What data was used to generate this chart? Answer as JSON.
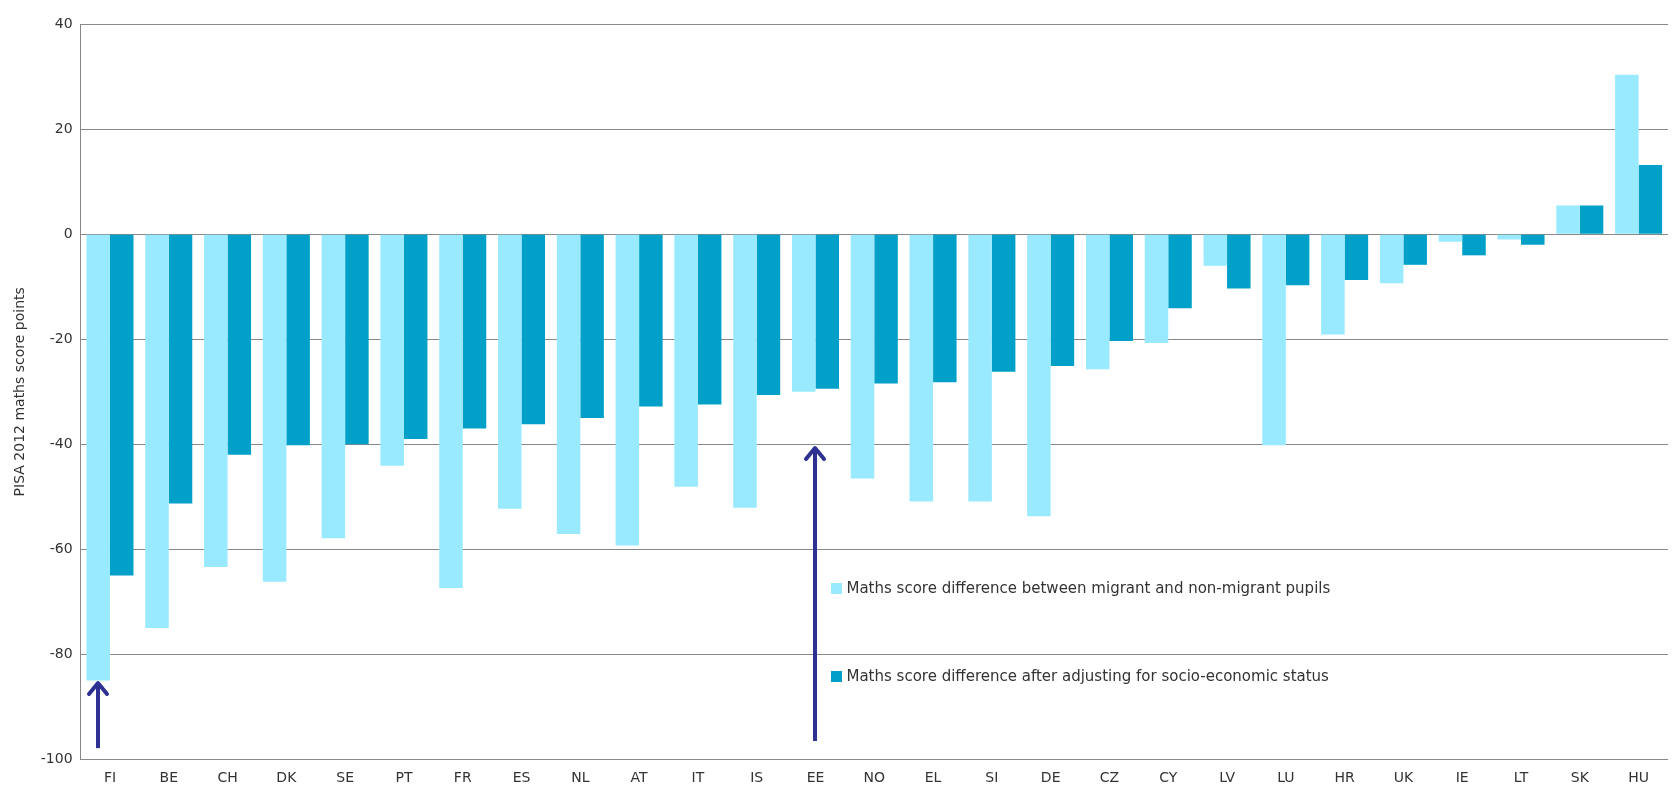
{
  "chart_data": {
    "type": "bar",
    "ylabel": "PISA 2012 maths score points",
    "categories": [
      "FI",
      "BE",
      "CH",
      "DK",
      "SE",
      "PT",
      "FR",
      "ES",
      "NL",
      "AT",
      "IT",
      "IS",
      "EE",
      "NO",
      "EL",
      "SI",
      "DE",
      "CZ",
      "CY",
      "LV",
      "LU",
      "HR",
      "UK",
      "IE",
      "LT",
      "SK",
      "HU"
    ],
    "series": [
      {
        "name": "Maths score difference between migrant and non-migrant pupils",
        "color": "#99eaff",
        "values": [
          -85,
          -75,
          -63.4,
          -66.2,
          -57.9,
          -44.1,
          -67.4,
          -52.3,
          -57.1,
          -59.3,
          -48.1,
          -52.1,
          -30,
          -46.5,
          -50.9,
          -50.9,
          -53.7,
          -25.7,
          -20.7,
          -6,
          -40.2,
          -19.1,
          -9.3,
          -1.4,
          -1,
          5.5,
          30.4
        ]
      },
      {
        "name": "Maths score difference after adjusting for socio-economic status",
        "color": "#00a0c8",
        "values": [
          -65,
          -51.3,
          -42,
          -40.2,
          -40,
          -39,
          -37,
          -36.2,
          -35,
          -32.8,
          -32.4,
          -30.6,
          -29.4,
          -28.4,
          -28.2,
          -26.2,
          -25.1,
          -20.3,
          -14.1,
          -10.3,
          -9.7,
          -8.7,
          -5.8,
          -4,
          -2,
          5.5,
          13.2
        ]
      }
    ],
    "ylim": [
      -100,
      40
    ],
    "yticks": [
      -100,
      -80,
      -60,
      -40,
      -20,
      0,
      20,
      40
    ],
    "grid": "y",
    "legend": "bottom"
  }
}
